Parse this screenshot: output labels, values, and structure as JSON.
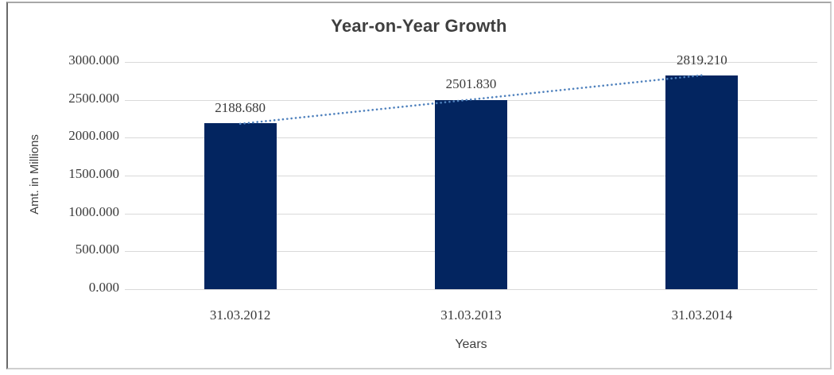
{
  "chart_data": {
    "type": "bar",
    "title": "Year-on-Year Growth",
    "categories": [
      "31.03.2012",
      "31.03.2013",
      "31.03.2014"
    ],
    "values": [
      2188.68,
      2501.83,
      2819.21
    ],
    "data_labels": [
      "2188.680",
      "2501.830",
      "2819.210"
    ],
    "xlabel": "Years",
    "ylabel": "Amt. in Millions",
    "ylim": [
      0,
      3000
    ],
    "ytick_step": 500,
    "ytick_labels": [
      "3000.000",
      "2500.000",
      "2000.000",
      "1500.000",
      "1000.000",
      "500.000",
      "0.000"
    ],
    "grid": true,
    "legend_position": "none",
    "bar_color": "#032560",
    "gridline_color": "#d9d9d9",
    "text_color": "#3a3a3a",
    "trendline": {
      "type": "linear",
      "style": "dotted",
      "color": "#4f81bd"
    }
  }
}
